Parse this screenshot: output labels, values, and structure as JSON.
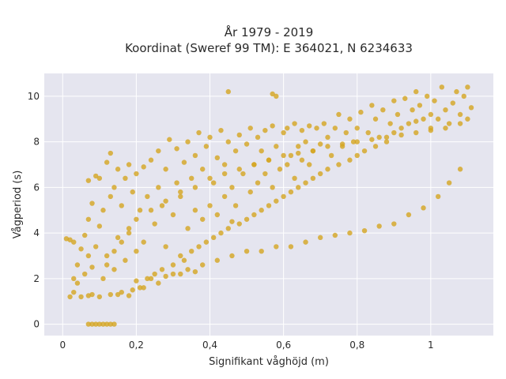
{
  "chart_data": {
    "type": "scatter",
    "title_line1": "År 1979 - 2019",
    "title_line2": "Koordinat (Sweref 99 TM): E 364021, N 6234633",
    "xlabel": "Signifikant våghöjd (m)",
    "ylabel": "Vågperiod (s)",
    "xlim": [
      -0.05,
      1.17
    ],
    "ylim": [
      -0.5,
      11
    ],
    "x_ticks": [
      {
        "value": 0,
        "label": "0"
      },
      {
        "value": 0.2,
        "label": "0,2"
      },
      {
        "value": 0.4,
        "label": "0,4"
      },
      {
        "value": 0.6,
        "label": "0,6"
      },
      {
        "value": 0.8,
        "label": "0,8"
      },
      {
        "value": 1,
        "label": "1"
      }
    ],
    "y_ticks": [
      {
        "value": 0,
        "label": "0"
      },
      {
        "value": 2,
        "label": "2"
      },
      {
        "value": 4,
        "label": "4"
      },
      {
        "value": 6,
        "label": "6"
      },
      {
        "value": 8,
        "label": "8"
      },
      {
        "value": 10,
        "label": "10"
      }
    ],
    "grid": true,
    "colors": {
      "marker": "#d4a520",
      "plot_bg": "#e5e5ef",
      "grid": "#ffffff"
    },
    "points": [
      [
        0.01,
        3.75
      ],
      [
        0.02,
        3.7
      ],
      [
        0.03,
        3.6
      ],
      [
        0.02,
        1.2
      ],
      [
        0.03,
        1.4
      ],
      [
        0.03,
        2.0
      ],
      [
        0.04,
        1.8
      ],
      [
        0.04,
        2.6
      ],
      [
        0.05,
        3.3
      ],
      [
        0.05,
        1.2
      ],
      [
        0.06,
        2.2
      ],
      [
        0.06,
        3.9
      ],
      [
        0.07,
        1.25
      ],
      [
        0.07,
        3.0
      ],
      [
        0.07,
        4.6
      ],
      [
        0.08,
        1.3
      ],
      [
        0.08,
        2.5
      ],
      [
        0.08,
        5.3
      ],
      [
        0.09,
        3.4
      ],
      [
        0.09,
        6.5
      ],
      [
        0.07,
        6.3
      ],
      [
        0.1,
        1.2
      ],
      [
        0.1,
        4.3
      ],
      [
        0.1,
        6.4
      ],
      [
        0.11,
        2.0
      ],
      [
        0.11,
        5.0
      ],
      [
        0.12,
        3.0
      ],
      [
        0.12,
        7.1
      ],
      [
        0.13,
        1.3
      ],
      [
        0.13,
        5.6
      ],
      [
        0.13,
        7.5
      ],
      [
        0.14,
        2.4
      ],
      [
        0.14,
        6.0
      ],
      [
        0.15,
        3.8
      ],
      [
        0.15,
        6.8
      ],
      [
        0.16,
        1.4
      ],
      [
        0.16,
        5.2
      ],
      [
        0.17,
        2.8
      ],
      [
        0.17,
        6.4
      ],
      [
        0.18,
        4.2
      ],
      [
        0.18,
        7.0
      ],
      [
        0.19,
        1.5
      ],
      [
        0.19,
        5.8
      ],
      [
        0.2,
        3.2
      ],
      [
        0.2,
        6.6
      ],
      [
        0.21,
        1.6
      ],
      [
        0.21,
        5.0
      ],
      [
        0.22,
        3.6
      ],
      [
        0.22,
        6.9
      ],
      [
        0.23,
        2.0
      ],
      [
        0.23,
        5.6
      ],
      [
        0.24,
        7.2
      ],
      [
        0.25,
        2.2
      ],
      [
        0.25,
        4.4
      ],
      [
        0.26,
        6.0
      ],
      [
        0.26,
        7.6
      ],
      [
        0.27,
        2.4
      ],
      [
        0.27,
        5.2
      ],
      [
        0.28,
        3.4
      ],
      [
        0.28,
        6.8
      ],
      [
        0.29,
        8.1
      ],
      [
        0.3,
        2.6
      ],
      [
        0.3,
        4.8
      ],
      [
        0.31,
        6.2
      ],
      [
        0.31,
        7.7
      ],
      [
        0.32,
        3.0
      ],
      [
        0.32,
        5.6
      ],
      [
        0.33,
        2.8
      ],
      [
        0.33,
        7.1
      ],
      [
        0.34,
        4.2
      ],
      [
        0.34,
        8.0
      ],
      [
        0.35,
        3.2
      ],
      [
        0.35,
        6.4
      ],
      [
        0.36,
        5.0
      ],
      [
        0.36,
        7.4
      ],
      [
        0.37,
        3.4
      ],
      [
        0.37,
        8.4
      ],
      [
        0.38,
        4.6
      ],
      [
        0.38,
        6.8
      ],
      [
        0.39,
        3.6
      ],
      [
        0.39,
        7.8
      ],
      [
        0.4,
        5.2
      ],
      [
        0.4,
        8.2
      ],
      [
        0.41,
        3.8
      ],
      [
        0.41,
        6.2
      ],
      [
        0.42,
        4.8
      ],
      [
        0.42,
        7.3
      ],
      [
        0.43,
        4.0
      ],
      [
        0.43,
        8.5
      ],
      [
        0.44,
        5.6
      ],
      [
        0.44,
        7.0
      ],
      [
        0.45,
        4.2
      ],
      [
        0.45,
        8.0
      ],
      [
        0.46,
        6.0
      ],
      [
        0.46,
        4.5
      ],
      [
        0.47,
        7.6
      ],
      [
        0.47,
        5.2
      ],
      [
        0.48,
        8.3
      ],
      [
        0.48,
        4.4
      ],
      [
        0.49,
        6.6
      ],
      [
        0.5,
        4.6
      ],
      [
        0.5,
        7.9
      ],
      [
        0.51,
        5.8
      ],
      [
        0.51,
        8.6
      ],
      [
        0.52,
        4.8
      ],
      [
        0.52,
        7.0
      ],
      [
        0.53,
        6.2
      ],
      [
        0.53,
        8.2
      ],
      [
        0.54,
        5.0
      ],
      [
        0.54,
        7.6
      ],
      [
        0.55,
        6.6
      ],
      [
        0.55,
        8.5
      ],
      [
        0.56,
        5.2
      ],
      [
        0.56,
        7.2
      ],
      [
        0.57,
        6.0
      ],
      [
        0.57,
        8.7
      ],
      [
        0.58,
        5.4
      ],
      [
        0.58,
        7.8
      ],
      [
        0.59,
        6.8
      ],
      [
        0.6,
        5.6
      ],
      [
        0.6,
        8.4
      ],
      [
        0.61,
        7.0
      ],
      [
        0.61,
        8.6
      ],
      [
        0.62,
        5.8
      ],
      [
        0.62,
        7.4
      ],
      [
        0.63,
        6.4
      ],
      [
        0.63,
        8.8
      ],
      [
        0.64,
        6.0
      ],
      [
        0.64,
        7.8
      ],
      [
        0.65,
        7.2
      ],
      [
        0.65,
        8.5
      ],
      [
        0.66,
        6.2
      ],
      [
        0.66,
        8.0
      ],
      [
        0.67,
        7.0
      ],
      [
        0.67,
        8.7
      ],
      [
        0.68,
        6.4
      ],
      [
        0.68,
        7.6
      ],
      [
        0.69,
        8.6
      ],
      [
        0.7,
        6.6
      ],
      [
        0.7,
        7.9
      ],
      [
        0.71,
        8.8
      ],
      [
        0.72,
        6.8
      ],
      [
        0.72,
        8.2
      ],
      [
        0.73,
        7.4
      ],
      [
        0.74,
        8.6
      ],
      [
        0.75,
        7.0
      ],
      [
        0.75,
        9.2
      ],
      [
        0.76,
        7.8
      ],
      [
        0.77,
        8.4
      ],
      [
        0.78,
        7.2
      ],
      [
        0.78,
        9.0
      ],
      [
        0.79,
        8.0
      ],
      [
        0.8,
        7.4
      ],
      [
        0.8,
        8.6
      ],
      [
        0.81,
        9.3
      ],
      [
        0.82,
        7.6
      ],
      [
        0.83,
        8.4
      ],
      [
        0.84,
        9.6
      ],
      [
        0.85,
        7.8
      ],
      [
        0.85,
        9.0
      ],
      [
        0.86,
        8.2
      ],
      [
        0.87,
        9.4
      ],
      [
        0.88,
        8.0
      ],
      [
        0.89,
        8.8
      ],
      [
        0.9,
        9.8
      ],
      [
        0.9,
        8.4
      ],
      [
        0.91,
        9.2
      ],
      [
        0.92,
        8.6
      ],
      [
        0.93,
        9.9
      ],
      [
        0.94,
        8.8
      ],
      [
        0.95,
        9.4
      ],
      [
        0.96,
        10.2
      ],
      [
        0.96,
        8.9
      ],
      [
        0.97,
        9.6
      ],
      [
        0.98,
        9.0
      ],
      [
        0.99,
        10.0
      ],
      [
        1.0,
        9.2
      ],
      [
        1.0,
        8.6
      ],
      [
        1.01,
        9.8
      ],
      [
        1.02,
        9.0
      ],
      [
        1.03,
        10.4
      ],
      [
        1.04,
        9.4
      ],
      [
        1.05,
        8.8
      ],
      [
        1.06,
        9.7
      ],
      [
        1.07,
        10.2
      ],
      [
        1.08,
        9.2
      ],
      [
        1.09,
        10.0
      ],
      [
        1.1,
        10.4
      ],
      [
        1.1,
        9.0
      ],
      [
        1.11,
        9.5
      ],
      [
        0.34,
        2.4
      ],
      [
        0.38,
        2.6
      ],
      [
        0.42,
        2.8
      ],
      [
        0.46,
        3.0
      ],
      [
        0.5,
        3.2
      ],
      [
        0.54,
        3.2
      ],
      [
        0.58,
        3.4
      ],
      [
        0.62,
        3.4
      ],
      [
        0.66,
        3.6
      ],
      [
        0.7,
        3.8
      ],
      [
        0.74,
        3.9
      ],
      [
        0.78,
        4.0
      ],
      [
        0.82,
        4.1
      ],
      [
        0.86,
        4.3
      ],
      [
        0.9,
        4.4
      ],
      [
        0.94,
        4.8
      ],
      [
        0.98,
        5.1
      ],
      [
        1.02,
        5.6
      ],
      [
        1.05,
        6.2
      ],
      [
        1.08,
        6.8
      ],
      [
        0.2,
        1.9
      ],
      [
        0.24,
        2.0
      ],
      [
        0.28,
        2.1
      ],
      [
        0.3,
        2.2
      ],
      [
        0.15,
        1.3
      ],
      [
        0.18,
        1.25
      ],
      [
        0.22,
        1.6
      ],
      [
        0.26,
        1.8
      ],
      [
        0.32,
        2.2
      ],
      [
        0.36,
        2.3
      ],
      [
        0.07,
        0
      ],
      [
        0.08,
        0
      ],
      [
        0.09,
        0
      ],
      [
        0.1,
        0
      ],
      [
        0.11,
        0
      ],
      [
        0.12,
        0
      ],
      [
        0.13,
        0
      ],
      [
        0.14,
        0
      ],
      [
        0.12,
        2.6
      ],
      [
        0.14,
        3.2
      ],
      [
        0.16,
        3.6
      ],
      [
        0.18,
        4.0
      ],
      [
        0.2,
        4.6
      ],
      [
        0.24,
        5.0
      ],
      [
        0.28,
        5.4
      ],
      [
        0.32,
        5.8
      ],
      [
        0.36,
        6.0
      ],
      [
        0.4,
        6.4
      ],
      [
        0.44,
        6.6
      ],
      [
        0.48,
        6.8
      ],
      [
        0.52,
        7.0
      ],
      [
        0.56,
        7.2
      ],
      [
        0.6,
        7.4
      ],
      [
        0.64,
        7.5
      ],
      [
        0.68,
        7.6
      ],
      [
        0.72,
        7.8
      ],
      [
        0.76,
        7.9
      ],
      [
        0.8,
        8.0
      ],
      [
        0.84,
        8.1
      ],
      [
        0.88,
        8.2
      ],
      [
        0.92,
        8.3
      ],
      [
        0.96,
        8.4
      ],
      [
        1.0,
        8.5
      ],
      [
        1.04,
        8.6
      ],
      [
        1.08,
        8.8
      ],
      [
        0.58,
        10.0
      ],
      [
        0.45,
        10.2
      ],
      [
        0.57,
        10.1
      ]
    ]
  }
}
